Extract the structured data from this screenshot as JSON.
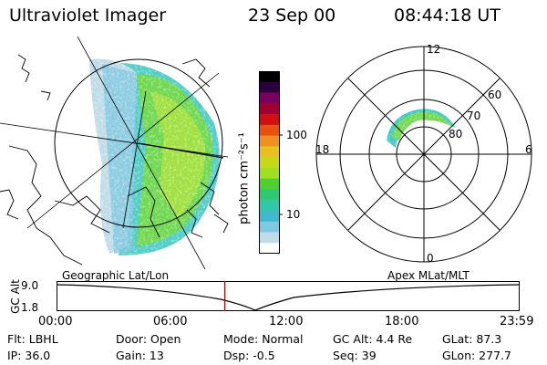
{
  "header": {
    "instrument": "Ultraviolet Imager",
    "date": "23 Sep 00",
    "time": "08:44:18 UT"
  },
  "colorbar": {
    "unit_label": "photon cm⁻²s⁻¹",
    "tick_labels": [
      "100",
      "10"
    ],
    "colors": [
      "#000000",
      "#2a0040",
      "#7a0060",
      "#a00030",
      "#d01010",
      "#e85010",
      "#f09020",
      "#e8c020",
      "#c8d818",
      "#a0e020",
      "#50d030",
      "#30c870",
      "#30c8a8",
      "#40b8d0",
      "#80c8e0",
      "#c0dce8",
      "#ffffff"
    ]
  },
  "geo_panel": {
    "label": "Geographic Lat/Lon"
  },
  "polar_panel": {
    "label": "Apex MLat/MLT",
    "mlt_labels": {
      "top": "12",
      "left": "18",
      "right": "6",
      "bottom": "0"
    },
    "mlat_labels": [
      "60",
      "70",
      "80"
    ]
  },
  "altitude_plot": {
    "ylabel": "GC Alt",
    "yticks": [
      "9.0",
      "1.8"
    ],
    "xticks": [
      "00:00",
      "06:00",
      "12:00",
      "18:00",
      "23:59"
    ],
    "marker_time": "08:44"
  },
  "footer": {
    "filter": "Flt: LBHL",
    "ip": "IP: 36.0",
    "door": "Door: Open",
    "gain": "Gain: 13",
    "mode": "Mode: Normal",
    "dsp": "Dsp:   -0.5",
    "gc_alt": "GC Alt: 4.4 Re",
    "seq": "Seq: 39",
    "glat": "GLat:  87.3",
    "glon": "GLon: 277.7"
  },
  "colors": {
    "marker": "#cc0000",
    "aurora_green": "#60d040",
    "aurora_cyan": "#40c8c0"
  }
}
